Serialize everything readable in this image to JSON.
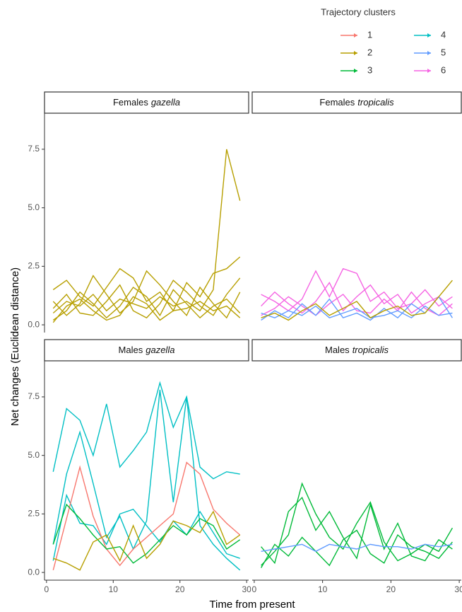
{
  "chart_data": {
    "type": "line",
    "legend_title": "Trajectory clusters",
    "clusters": [
      {
        "name": "1",
        "color": "#F8766D"
      },
      {
        "name": "2",
        "color": "#B79F00"
      },
      {
        "name": "3",
        "color": "#00BA38"
      },
      {
        "name": "4",
        "color": "#00BFC4"
      },
      {
        "name": "5",
        "color": "#619CFF"
      },
      {
        "name": "6",
        "color": "#F564E3"
      }
    ],
    "xlabel": "Time from present",
    "ylabel": "Net changes (Euclidean distance)",
    "xlim": [
      -0.3,
      30.3
    ],
    "xticks": [
      0,
      10,
      20,
      30
    ],
    "ylim": [
      -0.33,
      9.04
    ],
    "yticks": [
      {
        "value": 0,
        "label": "0.0"
      },
      {
        "value": 2.5,
        "label": "2.5"
      },
      {
        "value": 5,
        "label": "5.0"
      },
      {
        "value": 7.5,
        "label": "7.5"
      }
    ],
    "x": [
      1,
      3,
      5,
      7,
      9,
      11,
      13,
      15,
      17,
      19,
      21,
      23,
      25,
      27,
      29
    ],
    "facets": [
      {
        "sex": "Females",
        "species": "gazella",
        "lines": [
          {
            "cluster": "2",
            "values": [
              0.5,
              1.0,
              0.8,
              1.3,
              0.6,
              1.1,
              0.9,
              0.7,
              1.2,
              0.8,
              1.0,
              0.6,
              1.5,
              7.5,
              5.3
            ]
          },
          {
            "cluster": "2",
            "values": [
              1.5,
              1.9,
              1.2,
              0.8,
              1.6,
              2.4,
              2.0,
              1.0,
              1.4,
              0.6,
              1.8,
              1.2,
              2.2,
              2.4,
              2.9
            ]
          },
          {
            "cluster": "2",
            "values": [
              0.2,
              0.6,
              1.4,
              0.9,
              0.3,
              0.8,
              1.6,
              1.2,
              0.4,
              1.5,
              0.9,
              0.3,
              0.8,
              1.1,
              0.5
            ]
          },
          {
            "cluster": "2",
            "values": [
              1.0,
              0.4,
              0.9,
              2.1,
              1.3,
              0.5,
              1.0,
              2.3,
              1.7,
              1.0,
              0.4,
              1.6,
              0.9,
              0.3,
              1.4
            ]
          },
          {
            "cluster": "2",
            "values": [
              0.7,
              1.3,
              0.5,
              0.4,
              1.0,
              1.7,
              0.6,
              0.3,
              0.9,
              1.9,
              1.4,
              0.8,
              0.4,
              1.3,
              2.0
            ]
          },
          {
            "cluster": "2",
            "values": [
              0.1,
              0.8,
              1.1,
              0.6,
              0.2,
              0.4,
              1.2,
              0.9,
              0.2,
              0.6,
              0.7,
              1.0,
              0.6,
              0.8,
              0.3
            ]
          }
        ]
      },
      {
        "sex": "Females",
        "species": "tropicalis",
        "lines": [
          {
            "cluster": "6",
            "values": [
              1.3,
              1.0,
              0.6,
              1.1,
              2.3,
              1.2,
              2.4,
              2.2,
              1.0,
              1.4,
              0.7,
              0.9,
              1.5,
              0.8,
              1.2
            ]
          },
          {
            "cluster": "6",
            "values": [
              0.8,
              1.4,
              0.9,
              0.5,
              1.0,
              1.8,
              0.6,
              1.2,
              1.7,
              0.9,
              1.3,
              0.5,
              0.9,
              1.2,
              0.7
            ]
          },
          {
            "cluster": "6",
            "values": [
              0.4,
              0.7,
              1.2,
              0.8,
              0.4,
              0.9,
              1.3,
              0.6,
              0.5,
              1.1,
              0.6,
              1.4,
              0.7,
              0.4,
              0.9
            ]
          },
          {
            "cluster": "5",
            "values": [
              0.5,
              0.3,
              0.6,
              0.4,
              0.8,
              0.3,
              0.5,
              0.7,
              0.3,
              0.4,
              0.6,
              0.3,
              0.8,
              0.4,
              0.5
            ]
          },
          {
            "cluster": "5",
            "values": [
              0.2,
              0.6,
              0.3,
              0.9,
              0.4,
              1.1,
              0.3,
              0.5,
              0.2,
              0.7,
              0.3,
              0.9,
              0.5,
              1.2,
              0.3
            ]
          },
          {
            "cluster": "2",
            "values": [
              0.3,
              0.5,
              0.2,
              0.6,
              0.9,
              0.4,
              0.7,
              1.0,
              0.3,
              0.6,
              0.8,
              0.4,
              0.5,
              1.2,
              1.9
            ]
          }
        ]
      },
      {
        "sex": "Males",
        "species": "gazella",
        "lines": [
          {
            "cluster": "4",
            "values": [
              4.3,
              7.0,
              6.5,
              5.0,
              7.2,
              4.5,
              5.2,
              6.0,
              8.1,
              6.2,
              7.5,
              4.5,
              4.0,
              4.3,
              4.2
            ]
          },
          {
            "cluster": "4",
            "values": [
              1.2,
              4.2,
              6.0,
              3.8,
              1.5,
              2.4,
              1.0,
              2.2,
              7.8,
              3.0,
              7.5,
              2.0,
              1.2,
              0.6,
              0.1
            ]
          },
          {
            "cluster": "4",
            "values": [
              0.5,
              3.3,
              2.1,
              2.0,
              1.2,
              2.5,
              2.7,
              2.0,
              1.3,
              2.2,
              1.6,
              2.6,
              1.7,
              0.8,
              0.6
            ]
          },
          {
            "cluster": "1",
            "values": [
              0.1,
              2.3,
              4.5,
              2.4,
              1.0,
              0.3,
              1.0,
              1.5,
              2.0,
              2.5,
              4.7,
              4.2,
              2.7,
              2.1,
              1.6
            ]
          },
          {
            "cluster": "3",
            "values": [
              1.2,
              2.9,
              2.3,
              1.6,
              1.0,
              1.1,
              0.4,
              0.8,
              1.4,
              2.0,
              1.6,
              2.3,
              2.0,
              1.0,
              1.4
            ]
          },
          {
            "cluster": "2",
            "values": [
              0.6,
              0.4,
              0.1,
              1.3,
              1.6,
              0.5,
              2.0,
              0.6,
              1.2,
              2.2,
              2.0,
              1.7,
              2.6,
              1.2,
              1.6
            ]
          }
        ]
      },
      {
        "sex": "Males",
        "species": "tropicalis",
        "lines": [
          {
            "cluster": "3",
            "values": [
              0.3,
              0.9,
              1.6,
              3.8,
              2.5,
              1.5,
              1.0,
              2.1,
              3.0,
              1.3,
              0.5,
              0.8,
              1.2,
              0.9,
              1.9
            ]
          },
          {
            "cluster": "3",
            "values": [
              1.1,
              0.4,
              2.6,
              3.2,
              1.8,
              2.6,
              1.5,
              0.6,
              2.9,
              1.0,
              2.1,
              0.7,
              0.5,
              1.4,
              1.0
            ]
          },
          {
            "cluster": "3",
            "values": [
              0.2,
              1.2,
              0.7,
              1.5,
              0.9,
              0.3,
              1.4,
              1.8,
              0.8,
              0.4,
              1.6,
              1.1,
              0.9,
              0.6,
              1.3
            ]
          },
          {
            "cluster": "5",
            "values": [
              0.9,
              1.0,
              1.1,
              1.2,
              0.9,
              1.2,
              1.1,
              1.0,
              1.2,
              1.1,
              1.1,
              1.0,
              1.2,
              1.1,
              1.2
            ]
          }
        ]
      }
    ]
  }
}
